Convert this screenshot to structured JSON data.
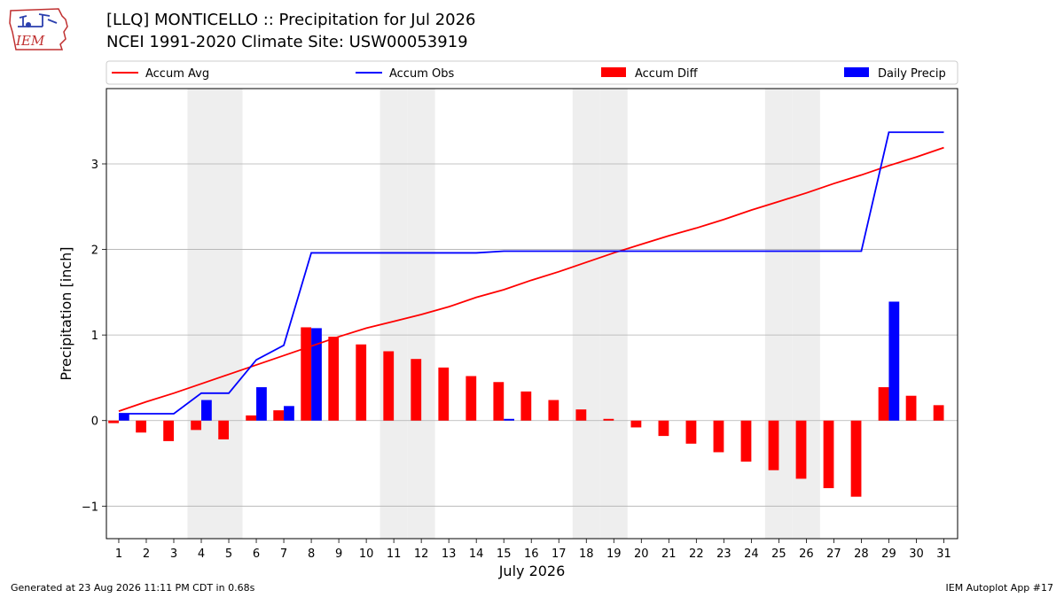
{
  "header": {
    "title": "[LLQ] MONTICELLO :: Precipitation for Jul 2026",
    "subtitle": "NCEI 1991-2020 Climate Site: USW00053919",
    "logo_text": "IEM"
  },
  "footer": {
    "generated": "Generated at 23 Aug 2026 11:11 PM CDT in 0.68s",
    "app": "IEM Autoplot App #17"
  },
  "colors": {
    "accum_avg": "#ff0000",
    "accum_obs": "#0000ff",
    "accum_diff": "#ff0000",
    "daily_precip": "#0000ff",
    "weekend_band": "#eeeeee",
    "grid": "#b0b0b0"
  },
  "chart_data": {
    "type": "bar",
    "title": "[LLQ] MONTICELLO :: Precipitation for Jul 2026",
    "subtitle": "NCEI 1991-2020 Climate Site: USW00053919",
    "xlabel": "July 2026",
    "ylabel": "Precipitation [inch]",
    "x": [
      1,
      2,
      3,
      4,
      5,
      6,
      7,
      8,
      9,
      10,
      11,
      12,
      13,
      14,
      15,
      16,
      17,
      18,
      19,
      20,
      21,
      22,
      23,
      24,
      25,
      26,
      27,
      28,
      29,
      30,
      31
    ],
    "xlim": [
      0.55,
      31.5
    ],
    "ylim": [
      -1.38,
      3.88
    ],
    "yticks": [
      -1,
      0,
      1,
      2,
      3
    ],
    "ytick_labels": [
      "−1",
      "0",
      "1",
      "2",
      "3"
    ],
    "grid": "y",
    "legend_placement": "top",
    "weekend_days": [
      4,
      5,
      11,
      12,
      18,
      19,
      25,
      26
    ],
    "legend": [
      "Accum Avg",
      "Accum Obs",
      "Accum Diff",
      "Daily Precip"
    ],
    "series": [
      {
        "name": "Accum Avg",
        "type": "line",
        "values": [
          0.11,
          0.22,
          0.32,
          0.43,
          0.54,
          0.65,
          0.76,
          0.87,
          0.98,
          1.08,
          1.16,
          1.24,
          1.33,
          1.44,
          1.53,
          1.64,
          1.74,
          1.85,
          1.96,
          2.06,
          2.16,
          2.25,
          2.35,
          2.46,
          2.56,
          2.66,
          2.77,
          2.87,
          2.98,
          3.08,
          3.19
        ]
      },
      {
        "name": "Accum Obs",
        "type": "line",
        "values": [
          0.08,
          0.08,
          0.08,
          0.32,
          0.32,
          0.71,
          0.88,
          1.96,
          1.96,
          1.96,
          1.96,
          1.96,
          1.96,
          1.96,
          1.98,
          1.98,
          1.98,
          1.98,
          1.98,
          1.98,
          1.98,
          1.98,
          1.98,
          1.98,
          1.98,
          1.98,
          1.98,
          1.98,
          3.37,
          3.37,
          3.37
        ]
      },
      {
        "name": "Accum Diff",
        "type": "bar",
        "values": [
          -0.03,
          -0.14,
          -0.24,
          -0.11,
          -0.22,
          0.06,
          0.12,
          1.09,
          0.98,
          0.89,
          0.81,
          0.72,
          0.62,
          0.52,
          0.45,
          0.34,
          0.24,
          0.13,
          0.02,
          -0.08,
          -0.18,
          -0.27,
          -0.37,
          -0.48,
          -0.58,
          -0.68,
          -0.79,
          -0.89,
          0.39,
          0.29,
          0.18
        ]
      },
      {
        "name": "Daily Precip",
        "type": "bar",
        "values": [
          0.08,
          0,
          0,
          0.24,
          0,
          0.39,
          0.17,
          1.08,
          0,
          0,
          0,
          0,
          0,
          0,
          0.02,
          0,
          0,
          0,
          0,
          0,
          0,
          0,
          0,
          0,
          0,
          0,
          0,
          0,
          1.39,
          0,
          0
        ]
      }
    ]
  }
}
